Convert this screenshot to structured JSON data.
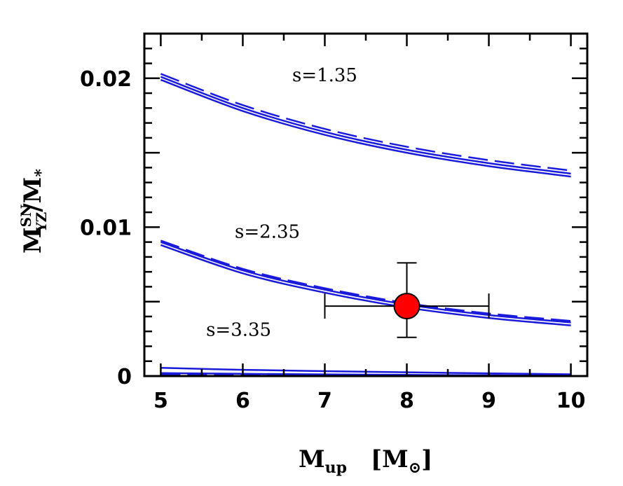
{
  "chart_data": {
    "type": "line",
    "xlabel": {
      "main": "M",
      "sub": "up",
      "unit_open": "[M",
      "unit_sub": "⊙",
      "unit_close": "]"
    },
    "ylabel": {
      "main": "M",
      "sup": "SN",
      "sub": "YZ",
      "div": "/M",
      "sub2": "*"
    },
    "xlim": [
      4.8,
      10.2
    ],
    "ylim": [
      0,
      0.023
    ],
    "xticks": [
      5,
      6,
      7,
      8,
      9,
      10
    ],
    "xtick_labels": [
      "5",
      "6",
      "7",
      "8",
      "9",
      "10"
    ],
    "yticks": [
      0,
      0.01,
      0.02
    ],
    "ytick_labels": [
      "0",
      "0.01",
      "0.02"
    ],
    "grid": false,
    "line_color": "#1a1adb",
    "point_color": "#ff0000",
    "annotations": [
      {
        "text": "s=1.35",
        "x": 7.0,
        "y": 0.0198
      },
      {
        "text": "s=2.35",
        "x": 6.3,
        "y": 0.0093
      },
      {
        "text": "s=3.35",
        "x": 5.95,
        "y": 0.0027
      }
    ],
    "series": [
      {
        "style": "solid",
        "x": [
          5,
          6,
          7,
          8,
          9,
          10
        ],
        "y": [
          0.0199,
          0.0178,
          0.0162,
          0.015,
          0.0141,
          0.0134
        ]
      },
      {
        "style": "solid",
        "x": [
          5,
          6,
          7,
          8,
          9,
          10
        ],
        "y": [
          0.0201,
          0.018,
          0.0164,
          0.0152,
          0.0143,
          0.0136
        ]
      },
      {
        "style": "dashed",
        "x": [
          5,
          6,
          7,
          8,
          9,
          10
        ],
        "y": [
          0.0203,
          0.0182,
          0.0166,
          0.0154,
          0.0145,
          0.0138
        ]
      },
      {
        "style": "solid",
        "x": [
          5,
          6,
          7,
          8,
          9,
          10
        ],
        "y": [
          0.0088,
          0.0069,
          0.0056,
          0.0046,
          0.0039,
          0.0034
        ]
      },
      {
        "style": "solid",
        "x": [
          5,
          6,
          7,
          8,
          9,
          10
        ],
        "y": [
          0.009,
          0.0071,
          0.0058,
          0.0048,
          0.0041,
          0.0036
        ]
      },
      {
        "style": "dashed",
        "x": [
          5,
          6,
          7,
          8,
          9,
          10
        ],
        "y": [
          0.0091,
          0.0072,
          0.0059,
          0.0049,
          0.0042,
          0.0037
        ]
      },
      {
        "style": "solid",
        "x": [
          5,
          6,
          7,
          8,
          9,
          10
        ],
        "y": [
          0.00055,
          0.00042,
          0.00033,
          0.00025,
          0.00018,
          0.00012
        ]
      },
      {
        "style": "solid",
        "x": [
          5,
          6,
          7,
          8,
          9,
          10
        ],
        "y": [
          0.0002,
          0.00015,
          0.00011,
          8e-05,
          5e-05,
          3e-05
        ]
      },
      {
        "style": "dashed",
        "x": [
          5,
          6,
          7,
          8,
          9,
          10
        ],
        "y": [
          0.0001,
          8e-05,
          6e-05,
          5e-05,
          4e-05,
          3e-05
        ]
      }
    ],
    "data_point": {
      "x": 8.0,
      "y": 0.0047,
      "xerr": [
        7.0,
        9.0
      ],
      "yerr": [
        0.0026,
        0.0076
      ]
    }
  }
}
